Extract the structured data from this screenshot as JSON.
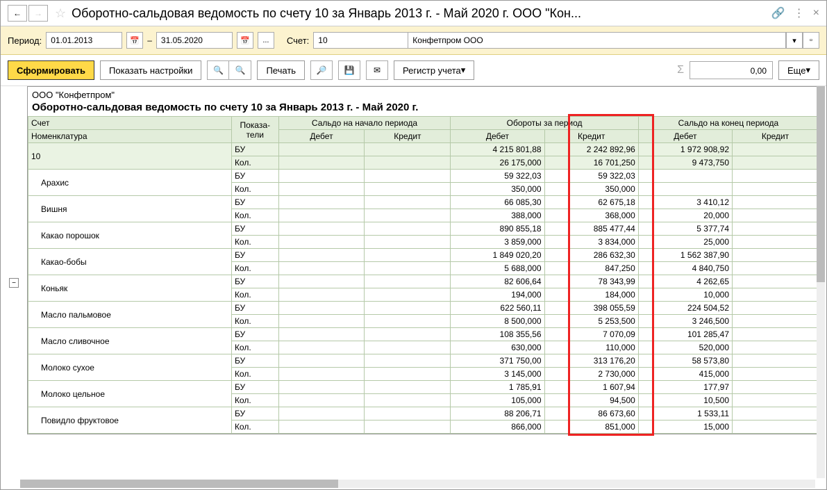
{
  "window": {
    "title": "Оборотно-сальдовая ведомость по счету 10 за Январь 2013 г. - Май 2020 г. ООО \"Кон..."
  },
  "filter": {
    "period_label": "Период:",
    "date_from": "01.01.2013",
    "date_to": "31.05.2020",
    "dash": "–",
    "dots": "...",
    "account_label": "Счет:",
    "account": "10",
    "org": "Конфетпром ООО"
  },
  "toolbar": {
    "form": "Сформировать",
    "settings": "Показать настройки",
    "print": "Печать",
    "register": "Регистр учета",
    "sum_value": "0,00",
    "more": "Еще"
  },
  "report": {
    "company": "ООО \"Конфетпром\"",
    "title": "Оборотно-сальдовая ведомость по счету 10 за Январь 2013 г. - Май 2020 г.",
    "headers": {
      "account": "Счет",
      "nomenclature": "Номенклатура",
      "indicators": "Показа-\nтели",
      "start": "Сальдо на начало периода",
      "turnover": "Обороты за период",
      "end": "Сальдо на конец периода",
      "debit": "Дебет",
      "credit": "Кредит"
    },
    "col_widths": [
      "260px",
      "60px",
      "110px",
      "110px",
      "120px",
      "120px",
      "120px",
      "110px"
    ],
    "header_bg": "#e2edda",
    "border_color": "#b5c9a8",
    "highlight_color": "#e22",
    "rows": [
      {
        "name": "10",
        "level": 0,
        "total": true,
        "bu": {
          "td": "4 215 801,88",
          "tc": "2 242 892,96",
          "ed": "1 972 908,92"
        },
        "kol": {
          "td": "26 175,000",
          "tc": "16 701,250",
          "ed": "9 473,750"
        }
      },
      {
        "name": "Арахис",
        "level": 1,
        "bu": {
          "td": "59 322,03",
          "tc": "59 322,03"
        },
        "kol": {
          "td": "350,000",
          "tc": "350,000"
        }
      },
      {
        "name": "Вишня",
        "level": 1,
        "bu": {
          "td": "66 085,30",
          "tc": "62 675,18",
          "ed": "3 410,12"
        },
        "kol": {
          "td": "388,000",
          "tc": "368,000",
          "ed": "20,000"
        }
      },
      {
        "name": "Какао порошок",
        "level": 1,
        "bu": {
          "td": "890 855,18",
          "tc": "885 477,44",
          "ed": "5 377,74"
        },
        "kol": {
          "td": "3 859,000",
          "tc": "3 834,000",
          "ed": "25,000"
        }
      },
      {
        "name": "Какао-бобы",
        "level": 1,
        "bu": {
          "td": "1 849 020,20",
          "tc": "286 632,30",
          "ed": "1 562 387,90"
        },
        "kol": {
          "td": "5 688,000",
          "tc": "847,250",
          "ed": "4 840,750"
        }
      },
      {
        "name": "Коньяк",
        "level": 1,
        "bu": {
          "td": "82 606,64",
          "tc": "78 343,99",
          "ed": "4 262,65"
        },
        "kol": {
          "td": "194,000",
          "tc": "184,000",
          "ed": "10,000"
        }
      },
      {
        "name": "Масло пальмовое",
        "level": 1,
        "bu": {
          "td": "622 560,11",
          "tc": "398 055,59",
          "ed": "224 504,52"
        },
        "kol": {
          "td": "8 500,000",
          "tc": "5 253,500",
          "ed": "3 246,500"
        }
      },
      {
        "name": "Масло сливочное",
        "level": 1,
        "bu": {
          "td": "108 355,56",
          "tc": "7 070,09",
          "ed": "101 285,47"
        },
        "kol": {
          "td": "630,000",
          "tc": "110,000",
          "ed": "520,000"
        }
      },
      {
        "name": "Молоко сухое",
        "level": 1,
        "bu": {
          "td": "371 750,00",
          "tc": "313 176,20",
          "ed": "58 573,80"
        },
        "kol": {
          "td": "3 145,000",
          "tc": "2 730,000",
          "ed": "415,000"
        }
      },
      {
        "name": "Молоко цельное",
        "level": 1,
        "bu": {
          "td": "1 785,91",
          "tc": "1 607,94",
          "ed": "177,97"
        },
        "kol": {
          "td": "105,000",
          "tc": "94,500",
          "ed": "10,500"
        }
      },
      {
        "name": "Повидло фруктовое",
        "level": 1,
        "bu": {
          "td": "88 206,71",
          "tc": "86 673,60",
          "ed": "1 533,11"
        },
        "kol": {
          "td": "866,000",
          "tc": "851,000",
          "ed": "15,000"
        }
      }
    ],
    "ind_bu": "БУ",
    "ind_kol": "Кол."
  }
}
